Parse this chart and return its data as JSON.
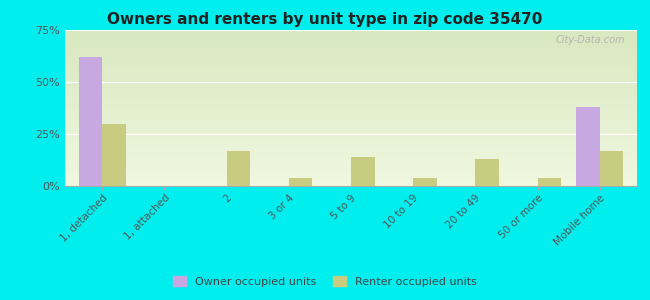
{
  "title": "Owners and renters by unit type in zip code 35470",
  "categories": [
    "1, detached",
    "1, attached",
    "2",
    "3 or 4",
    "5 to 9",
    "10 to 19",
    "20 to 49",
    "50 or more",
    "Mobile home"
  ],
  "owner_values": [
    62,
    0,
    0,
    0,
    0,
    0,
    0,
    0,
    38
  ],
  "renter_values": [
    30,
    0,
    17,
    4,
    14,
    4,
    13,
    4,
    17
  ],
  "owner_color": "#c8a8e0",
  "renter_color": "#c8cc80",
  "background_color": "#00eeee",
  "plot_bg_top": "#d8e8c0",
  "plot_bg_bottom": "#f0f8e0",
  "ylim": [
    0,
    75
  ],
  "yticks": [
    0,
    25,
    50,
    75
  ],
  "ytick_labels": [
    "0%",
    "25%",
    "50%",
    "75%"
  ],
  "bar_width": 0.38,
  "legend_owner": "Owner occupied units",
  "legend_renter": "Renter occupied units",
  "watermark": "City-Data.com"
}
